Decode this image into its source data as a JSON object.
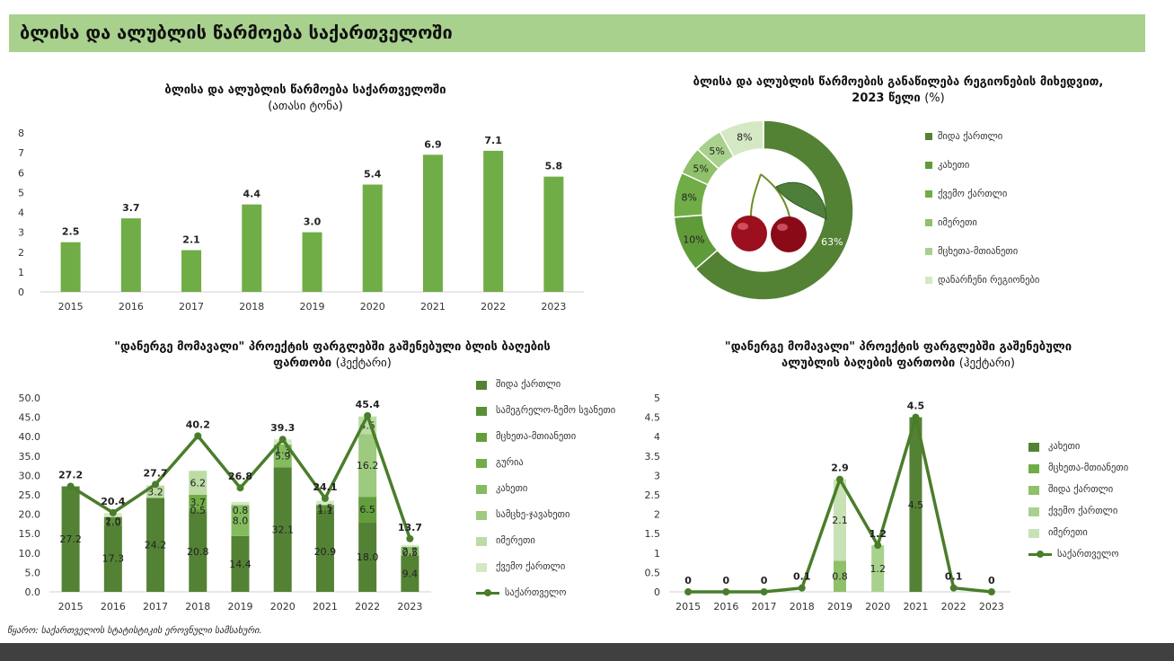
{
  "header": {
    "title": "ბლისა და ალუბლის წარმოება საქართველოში"
  },
  "source": "წყარო: საქართველოს სტატისტიკის ეროვნული სამსახური.",
  "charts": {
    "production": {
      "title": "ბლისა და ალუბლის წარმოება საქართველოში",
      "unit": "(ათასი ტონა)"
    },
    "pie": {
      "title_line1": "ბლისა და ალუბლის წარმოების განაწილება რეგიონების მიხედვით,",
      "title_line2": "2023 წელი",
      "unit": "(%)"
    },
    "cherry_area": {
      "title_line1": "\"დანერგე მომავალი\" პროექტის ფარგლებში გაშენებული ბლის ბაღების",
      "title_line2": "ფართობი",
      "unit": "(ჰექტარი)"
    },
    "sourcherry_area": {
      "title_line1": "\"დანერგე მომავალი\" პროექტის ფარგლებში გაშენებული",
      "title_line2": "ალუბლის ბაღების ფართობი",
      "unit": "(ჰექტარი)"
    }
  },
  "colors": {
    "header_bg": "#a9d18e",
    "bar": "#70ad47",
    "line": "#4a7d2a",
    "dark": "#548235"
  },
  "chart_data": [
    {
      "type": "bar",
      "categories": [
        "2015",
        "2016",
        "2017",
        "2018",
        "2019",
        "2020",
        "2021",
        "2022",
        "2023"
      ],
      "values": [
        2.5,
        3.7,
        2.1,
        4.4,
        3.0,
        5.4,
        6.9,
        7.1,
        5.8
      ],
      "labels": [
        "2.5",
        "3.7",
        "2.1",
        "4.4",
        "3.0",
        "5.4",
        "6.9",
        "7.1",
        "5.8"
      ],
      "ylim": [
        0,
        8
      ],
      "yticks": [
        "0",
        "1",
        "2",
        "3",
        "4",
        "5",
        "6",
        "7",
        "8"
      ],
      "grid": false
    },
    {
      "type": "pie",
      "categories": [
        "შიდა ქართლი",
        "კახეთი",
        "ქვემო ქართლი",
        "იმერეთი",
        "მცხეთა-მთიანეთი",
        "დანარჩენი რეგიონები"
      ],
      "values": [
        63,
        10,
        8,
        5,
        5,
        8
      ],
      "labels": [
        "63%",
        "10%",
        "8%",
        "5%",
        "5%",
        "8%"
      ],
      "colors": [
        "#548235",
        "#609b3a",
        "#70ad47",
        "#8fc06a",
        "#a9d18e",
        "#d5e8c4"
      ],
      "legend": "right"
    },
    {
      "type": "bar",
      "stacked": true,
      "categories": [
        "2015",
        "2016",
        "2017",
        "2018",
        "2019",
        "2020",
        "2021",
        "2022",
        "2023"
      ],
      "ylim": [
        0,
        50
      ],
      "yticks": [
        "0.0",
        "5.0",
        "10.0",
        "15.0",
        "20.0",
        "25.0",
        "30.0",
        "35.0",
        "40.0",
        "45.0",
        "50.0"
      ],
      "series": [
        {
          "name": "შიდა ქართლი",
          "color": "#548235",
          "values": [
            27.2,
            17.3,
            24.2,
            20.8,
            14.4,
            32.1,
            20.9,
            18.0,
            9.4
          ]
        },
        {
          "name": "სამეგრელო-ზემო სვანეთი",
          "color": "#5a8f37",
          "values": [
            0,
            2.0,
            0,
            0,
            0,
            0,
            1.5,
            0,
            0
          ]
        },
        {
          "name": "მცხეთა-მთიანეთი",
          "color": "#639e3d",
          "values": [
            0,
            0,
            0,
            0.5,
            0,
            0,
            0,
            6.5,
            0
          ]
        },
        {
          "name": "გურია",
          "color": "#70ad47",
          "values": [
            0,
            0,
            0,
            3.7,
            0,
            0,
            0,
            0,
            0
          ]
        },
        {
          "name": "კახეთი",
          "color": "#84bb5e",
          "values": [
            0,
            0,
            0,
            0,
            8.0,
            5.9,
            0,
            0,
            2.2
          ]
        },
        {
          "name": "სამცხე-ჯავახეთი",
          "color": "#9dca7e",
          "values": [
            0,
            0,
            0,
            0,
            0,
            0,
            0,
            16.2,
            0
          ]
        },
        {
          "name": "იმერეთი",
          "color": "#bcdca4",
          "values": [
            0,
            0,
            3.2,
            6.2,
            0,
            0,
            0,
            4.5,
            0
          ]
        },
        {
          "name": "ქვემო ქართლი",
          "color": "#d5e8c4",
          "values": [
            0,
            1.0,
            0,
            0,
            0.8,
            1.3,
            1.1,
            0,
            0.5
          ]
        }
      ],
      "segment_labels": [
        [
          "27.2"
        ],
        [
          "17.3",
          "2.0",
          "1.0"
        ],
        [
          "24.2",
          "3.2"
        ],
        [
          "20.8",
          "0.5",
          "3.7",
          "6.2"
        ],
        [
          "14.4",
          "8.0",
          "0.8"
        ],
        [
          "32.1",
          "5.9",
          "1.3"
        ],
        [
          "20.9",
          "1.5",
          "1.1"
        ],
        [
          "18.0",
          "6.5",
          "16.2",
          "4.5"
        ],
        [
          "9.4",
          "2.2",
          "0.5"
        ]
      ],
      "line": {
        "name": "საქართველო",
        "values": [
          27.2,
          20.4,
          27.7,
          40.2,
          26.8,
          39.3,
          24.1,
          45.4,
          13.7
        ],
        "labels": [
          "27.2",
          "20.4",
          "27.7",
          "40.2",
          "26.8",
          "39.3",
          "24.1",
          "45.4",
          "13.7"
        ]
      },
      "legend": "right"
    },
    {
      "type": "bar",
      "stacked": true,
      "categories": [
        "2015",
        "2016",
        "2017",
        "2018",
        "2019",
        "2020",
        "2021",
        "2022",
        "2023"
      ],
      "ylim": [
        0,
        5
      ],
      "yticks": [
        "0",
        "0.5",
        "1",
        "1.5",
        "2",
        "2.5",
        "3",
        "3.5",
        "4",
        "4.5",
        "5"
      ],
      "series": [
        {
          "name": "კახეთი",
          "color": "#548235",
          "values": [
            0,
            0,
            0,
            0,
            0,
            0,
            4.5,
            0,
            0
          ]
        },
        {
          "name": "მცხეთა-მთიანეთი",
          "color": "#70ad47",
          "values": [
            0,
            0,
            0,
            0,
            0,
            0,
            0,
            0,
            0
          ]
        },
        {
          "name": "შიდა ქართლი",
          "color": "#8fc06a",
          "values": [
            0,
            0,
            0,
            0,
            0.8,
            0,
            0,
            0,
            0
          ]
        },
        {
          "name": "ქვემო ქართლი",
          "color": "#a9d18e",
          "values": [
            0,
            0,
            0,
            0,
            0,
            1.2,
            0,
            0,
            0
          ]
        },
        {
          "name": "იმერეთი",
          "color": "#c9e2b5",
          "values": [
            0,
            0,
            0,
            0,
            2.1,
            0,
            0,
            0,
            0
          ]
        }
      ],
      "segment_labels": [
        [],
        [],
        [],
        [],
        [
          "0.8",
          "2.1"
        ],
        [
          "1.2"
        ],
        [
          "4.5"
        ],
        [],
        []
      ],
      "line": {
        "name": "საქართველო",
        "values": [
          0,
          0,
          0,
          0.1,
          2.9,
          1.2,
          4.5,
          0.1,
          0
        ],
        "labels": [
          "0",
          "0",
          "0",
          "0.1",
          "2.9",
          "1.2",
          "4.5",
          "0.1",
          "0"
        ]
      },
      "legend": "right"
    }
  ]
}
